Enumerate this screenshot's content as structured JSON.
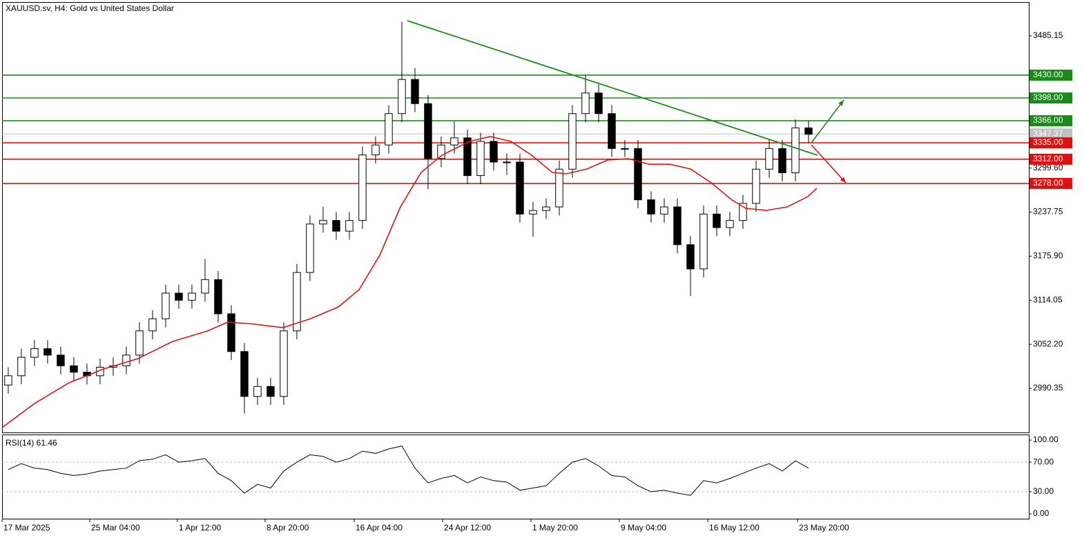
{
  "chart_data": [
    {
      "type": "candlestick",
      "title": "XAUUSD.sv, H4:  Gold vs United States Dollar",
      "color": "#000000",
      "x": [
        0,
        1,
        2,
        3,
        4,
        5,
        6,
        7,
        8,
        9,
        10,
        11,
        12,
        13,
        14,
        15,
        16,
        17,
        18,
        19,
        20,
        21,
        22,
        23,
        24,
        25,
        26,
        27,
        28,
        29,
        30,
        31,
        32,
        33,
        34,
        35,
        36,
        37,
        38,
        39,
        40,
        41,
        42,
        43,
        44,
        45,
        46,
        47,
        48,
        49,
        50,
        51,
        52,
        53,
        54,
        55,
        56,
        57,
        58,
        59,
        60,
        61
      ],
      "open": [
        2995,
        3008,
        3034,
        3046,
        3037,
        3022,
        3013,
        3008,
        3020,
        3022,
        3037,
        3071,
        3088,
        3124,
        3114,
        3124,
        3143,
        3095,
        3042,
        2979,
        2993,
        2979,
        3071,
        3153,
        3221,
        3226,
        3211,
        3226,
        3318,
        3332,
        3376,
        3424,
        3390,
        3313,
        3332,
        3342,
        3289,
        3337,
        3308,
        3308,
        3235,
        3240,
        3245,
        3298,
        3376,
        3405,
        3376,
        3327,
        3327,
        3255,
        3235,
        3245,
        3192,
        3158,
        3235,
        3216,
        3226,
        3250,
        3298,
        3327,
        3293,
        3356
      ],
      "high": [
        3020,
        3046,
        3058,
        3058,
        3049,
        3034,
        3025,
        3032,
        3034,
        3049,
        3083,
        3100,
        3136,
        3136,
        3136,
        3172,
        3155,
        3107,
        3054,
        3005,
        3005,
        3083,
        3165,
        3233,
        3245,
        3238,
        3238,
        3330,
        3344,
        3388,
        3505,
        3440,
        3402,
        3344,
        3365,
        3354,
        3349,
        3349,
        3320,
        3320,
        3252,
        3257,
        3310,
        3388,
        3430,
        3417,
        3388,
        3339,
        3339,
        3267,
        3257,
        3257,
        3204,
        3247,
        3247,
        3238,
        3262,
        3310,
        3339,
        3339,
        3368,
        3366
      ],
      "low": [
        2983,
        2996,
        3022,
        3025,
        3010,
        3001,
        2996,
        2996,
        3008,
        3010,
        3025,
        3059,
        3076,
        3102,
        3102,
        3112,
        3083,
        3030,
        2955,
        2967,
        2967,
        2967,
        3059,
        3141,
        3209,
        3199,
        3199,
        3214,
        3306,
        3320,
        3364,
        3378,
        3270,
        3301,
        3320,
        3277,
        3277,
        3296,
        3290,
        3223,
        3203,
        3228,
        3233,
        3286,
        3364,
        3364,
        3315,
        3315,
        3243,
        3223,
        3223,
        3180,
        3120,
        3146,
        3204,
        3204,
        3214,
        3238,
        3286,
        3281,
        3281,
        3335
      ],
      "close": [
        3008,
        3034,
        3046,
        3037,
        3022,
        3013,
        3008,
        3020,
        3022,
        3037,
        3071,
        3088,
        3124,
        3114,
        3124,
        3143,
        3095,
        3042,
        2979,
        2993,
        2979,
        3071,
        3153,
        3221,
        3226,
        3211,
        3226,
        3318,
        3332,
        3376,
        3424,
        3390,
        3313,
        3332,
        3342,
        3289,
        3337,
        3308,
        3308,
        3235,
        3240,
        3245,
        3298,
        3376,
        3405,
        3376,
        3327,
        3327,
        3255,
        3235,
        3245,
        3192,
        3158,
        3235,
        3216,
        3226,
        3250,
        3298,
        3327,
        3293,
        3356,
        3347
      ],
      "ma": {
        "color": "#e01010",
        "x": [
          -0.47,
          2.0,
          4.63,
          7.26,
          9.89,
          12.53,
          15.16,
          16.74,
          18.84,
          20.95,
          23.05,
          25.16,
          26.74,
          28.32,
          29.89,
          31.47,
          33.05,
          35.16,
          36.74,
          38.32,
          39.89,
          41.47,
          42.53,
          44.11,
          45.68,
          47.26,
          48.84,
          50.42,
          52.0,
          53.58,
          55.16,
          56.21,
          57.79,
          59.37,
          60.95,
          61.63
        ],
        "values": [
          2935.2,
          2969.0,
          2998.1,
          3017.5,
          3032.0,
          3056.2,
          3070.7,
          3083.3,
          3080.4,
          3075.6,
          3088.2,
          3104.6,
          3128.8,
          3177.2,
          3245.0,
          3293.4,
          3317.6,
          3337.0,
          3343.8,
          3337.0,
          3317.6,
          3293.4,
          3291.5,
          3298.3,
          3310.9,
          3312.8,
          3305.0,
          3305.0,
          3298.3,
          3278.9,
          3254.7,
          3243.1,
          3240.2,
          3245.0,
          3259.5,
          3271.2
        ]
      },
      "trendline": {
        "color": "#1a8a1a",
        "x": [
          30.42,
          61.68
        ],
        "values": [
          3506.5,
          3317.6
        ]
      },
      "arrows": [
        {
          "color": "#1a8a1a",
          "x": [
            61.21,
            63.68
          ],
          "values": [
            3335.1,
            3395.1
          ]
        },
        {
          "color": "#e01010",
          "x": [
            61.21,
            63.84
          ],
          "values": [
            3332.2,
            3278.9
          ]
        }
      ],
      "levels": [
        {
          "value": 3430,
          "label": "3430.00",
          "color": "#1a8a1a"
        },
        {
          "value": 3398,
          "label": "3398.00",
          "color": "#1a8a1a"
        },
        {
          "value": 3366,
          "label": "3366.00",
          "color": "#1a8a1a"
        },
        {
          "value": 3335,
          "label": "3335.00",
          "color": "#e01010"
        },
        {
          "value": 3312,
          "label": "3312.00",
          "color": "#e01010"
        },
        {
          "value": 3278,
          "label": "3278.00",
          "color": "#e01010"
        }
      ],
      "last_price": {
        "value": 3347.37,
        "label": "3347.37",
        "color": "#c0c0c0"
      },
      "xlim": [
        -0.47,
        77.79
      ],
      "ylim": [
        2928.4,
        3532.6
      ],
      "yticks": [
        3485.15,
        {
          "value": 3299.6,
          "label": "3299.60"
        },
        3237.75,
        {
          "value": 3175.9,
          "label": "3175.90"
        },
        3114.05,
        {
          "value": 3052.2,
          "label": "3052.20"
        },
        2990.35
      ]
    },
    {
      "type": "line",
      "title": "RSI(14) 61.46",
      "color": "#000000",
      "x": [
        0,
        1,
        2,
        3,
        4,
        5,
        6,
        7,
        8,
        9,
        10,
        11,
        12,
        13,
        14,
        15,
        16,
        17,
        18,
        19,
        20,
        21,
        22,
        23,
        24,
        25,
        26,
        27,
        28,
        29,
        30,
        31,
        32,
        33,
        34,
        35,
        36,
        37,
        38,
        39,
        40,
        41,
        42,
        43,
        44,
        45,
        46,
        47,
        48,
        49,
        50,
        51,
        52,
        53,
        54,
        55,
        56,
        57,
        58,
        59,
        60,
        61
      ],
      "values": [
        60,
        68,
        62,
        60,
        55,
        52,
        54,
        58,
        60,
        62,
        72,
        74,
        80,
        70,
        72,
        75,
        55,
        45,
        28,
        40,
        35,
        58,
        70,
        80,
        78,
        70,
        75,
        85,
        82,
        88,
        92,
        62,
        42,
        48,
        52,
        42,
        50,
        45,
        43,
        32,
        35,
        38,
        55,
        70,
        75,
        65,
        52,
        50,
        38,
        30,
        32,
        28,
        25,
        45,
        42,
        48,
        55,
        62,
        68,
        58,
        72,
        62
      ],
      "xlim": [
        -0.47,
        77.79
      ],
      "ylim": [
        -7.5,
        107.5
      ],
      "yticks": [
        {
          "value": 100,
          "label": "100.00"
        },
        {
          "value": 70,
          "label": "70.00"
        },
        {
          "value": 30,
          "label": "30.00"
        },
        {
          "value": 0,
          "label": "0.00"
        }
      ],
      "dashed_levels": [
        70,
        30
      ],
      "xticks": [
        {
          "value": -0.47,
          "label": "17 Mar 2025"
        },
        {
          "value": 6.21,
          "label": "25 Mar 04:00"
        },
        {
          "value": 12.89,
          "label": "1 Apr 12:00"
        },
        {
          "value": 19.58,
          "label": "8 Apr 20:00"
        },
        {
          "value": 26.37,
          "label": "16 Apr 04:00"
        },
        {
          "value": 33.11,
          "label": "24 Apr 12:00"
        },
        {
          "value": 39.84,
          "label": "1 May 20:00"
        },
        {
          "value": 46.58,
          "label": "9 May 04:00"
        },
        {
          "value": 53.32,
          "label": "16 May 12:00"
        },
        {
          "value": 60.16,
          "label": "23 May 20:00"
        }
      ]
    }
  ]
}
